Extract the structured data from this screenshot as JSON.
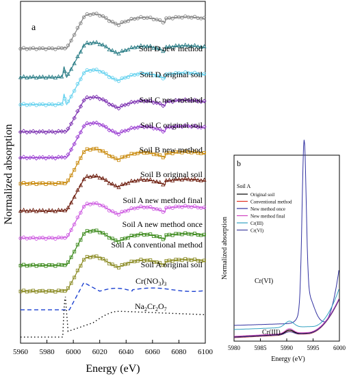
{
  "chart_data": [
    {
      "panel": "a",
      "type": "line",
      "xlabel": "Energy (eV)",
      "ylabel": "Normalized absorption",
      "xlim": [
        5960,
        6100
      ],
      "xticks": [
        5960,
        5980,
        6000,
        6020,
        6040,
        6060,
        6080,
        6100
      ],
      "series": [
        {
          "name": "Soil D new method",
          "color": "#808080",
          "offset": 9.5,
          "marker": "circle"
        },
        {
          "name": "Soil D original soil",
          "color": "#2a7d86",
          "offset": 8.5,
          "marker": "triangle",
          "pre_peak": true
        },
        {
          "name": "Soil C new method",
          "color": "#5fd0ee",
          "offset": 7.55,
          "marker": "circle",
          "pre_peak": true
        },
        {
          "name": "Soil C original soil",
          "color": "#7b2fb0",
          "offset": 6.6,
          "marker": "diamond"
        },
        {
          "name": "Soil B new method",
          "color": "#9b3fd2",
          "offset": 5.7,
          "marker": "diamond"
        },
        {
          "name": "Soil B original soil",
          "color": "#c98a0d",
          "offset": 4.8,
          "marker": "square"
        },
        {
          "name": "Soil A new method final",
          "color": "#6e1f10",
          "offset": 3.85,
          "marker": "triangle"
        },
        {
          "name": "Soil A new method once",
          "color": "#cc55e0",
          "offset": 2.9,
          "marker": "circle"
        },
        {
          "name": "Soil A conventional method",
          "color": "#3c8a1c",
          "offset": 1.95,
          "marker": "square"
        },
        {
          "name": "Soil A original soil",
          "color": "#8a8a22",
          "offset": 1.05,
          "marker": "square"
        },
        {
          "name": "Cr(NO3)3",
          "label_main": "Cr(NO",
          "label_sub1": "3",
          "label_close": ")",
          "label_sub2": "3",
          "color": "#1a3fd0",
          "style": "dashed",
          "offset": 0.4
        },
        {
          "name": "Na2Cr2O7",
          "label_parts": [
            "Na",
            "2",
            "Cr",
            "2",
            "O",
            "7"
          ],
          "color": "#000000",
          "style": "dotted",
          "offset": -0.55
        }
      ]
    },
    {
      "panel": "b",
      "type": "line",
      "xlabel": "Energy (eV)",
      "ylabel": "Normalized absorption",
      "xlim": [
        5980,
        6000
      ],
      "xticks": [
        5980,
        5985,
        5990,
        5995,
        6000
      ],
      "legend_title": "Soil A",
      "legend": [
        {
          "name": "Original soil",
          "color": "#000000"
        },
        {
          "name": "Conventional method",
          "color": "#e03020"
        },
        {
          "name": "New method once",
          "color": "#3030a0"
        },
        {
          "name": "New method final",
          "color": "#d040c0"
        },
        {
          "name": "Cr(III)",
          "color": "#30a0c0"
        },
        {
          "name": "Cr(VI)",
          "color": "#4040a0"
        }
      ],
      "annotations": [
        {
          "text": "Cr(VI)",
          "color": "#3a3aa8"
        },
        {
          "text": "Cr(III)",
          "color": "#3aa8c8"
        }
      ]
    }
  ],
  "labels": {
    "panel_a": "a",
    "panel_b": "b"
  }
}
